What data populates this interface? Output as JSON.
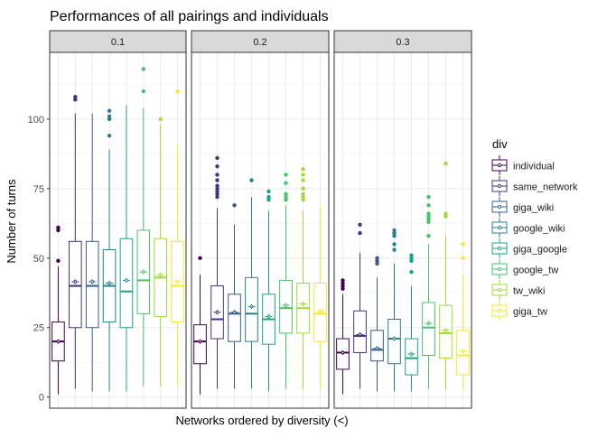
{
  "chart_data": {
    "type": "box",
    "title": "Performances of all pairings and individuals",
    "xlabel": "Networks ordered by diversity (<)",
    "ylabel": "Number of turns",
    "ylim": [
      -4,
      124
    ],
    "y_ticks": [
      0,
      25,
      50,
      75,
      100
    ],
    "grid": true,
    "legend_title": "div",
    "legend_position": "right",
    "series": [
      {
        "name": "individual",
        "color": "#440154"
      },
      {
        "name": "same_network",
        "color": "#46337E"
      },
      {
        "name": "giga_wiki",
        "color": "#365C8D"
      },
      {
        "name": "google_wiki",
        "color": "#277F8E"
      },
      {
        "name": "giga_google",
        "color": "#1FA187"
      },
      {
        "name": "google_tw",
        "color": "#4AC16D"
      },
      {
        "name": "tw_wiki",
        "color": "#9FDA3A"
      },
      {
        "name": "giga_tw",
        "color": "#FDE725"
      }
    ],
    "facets": [
      {
        "label": "0.1",
        "boxes": [
          {
            "series": "individual",
            "min": 1,
            "q1": 13,
            "median": 20,
            "q3": 27,
            "max": 47,
            "mean": 20,
            "outliers": [
              49,
              60,
              61
            ]
          },
          {
            "series": "same_network",
            "min": 3,
            "q1": 25,
            "median": 40,
            "q3": 56,
            "max": 102,
            "mean": 41.5,
            "outliers": [
              107,
              108
            ]
          },
          {
            "series": "giga_wiki",
            "min": 2,
            "q1": 25,
            "median": 40,
            "q3": 56,
            "max": 102,
            "mean": 41.5,
            "outliers": []
          },
          {
            "series": "google_wiki",
            "min": 2,
            "q1": 27,
            "median": 40,
            "q3": 53,
            "max": 89,
            "mean": 41,
            "outliers": [
              94,
              100,
              101,
              103
            ]
          },
          {
            "series": "giga_google",
            "min": 2,
            "q1": 25,
            "median": 38,
            "q3": 57,
            "max": 105,
            "mean": 42,
            "outliers": []
          },
          {
            "series": "google_tw",
            "min": 4,
            "q1": 30,
            "median": 42,
            "q3": 60,
            "max": 104,
            "mean": 45,
            "outliers": [
              110,
              118
            ]
          },
          {
            "series": "tw_wiki",
            "min": 4,
            "q1": 29,
            "median": 43,
            "q3": 57,
            "max": 98,
            "mean": 44,
            "outliers": [
              100
            ]
          },
          {
            "series": "giga_tw",
            "min": 4,
            "q1": 27,
            "median": 40,
            "q3": 56,
            "max": 91,
            "mean": 41.5,
            "outliers": [
              110
            ]
          }
        ]
      },
      {
        "label": "0.2",
        "boxes": [
          {
            "series": "individual",
            "min": 1,
            "q1": 12,
            "median": 20,
            "q3": 26,
            "max": 44,
            "mean": 20,
            "outliers": [
              50
            ]
          },
          {
            "series": "same_network",
            "min": 3,
            "q1": 21,
            "median": 28,
            "q3": 40,
            "max": 68,
            "mean": 30.5,
            "outliers": [
              72,
              73,
              74,
              75,
              76,
              78,
              80,
              83,
              86
            ]
          },
          {
            "series": "giga_wiki",
            "min": 3,
            "q1": 20,
            "median": 30,
            "q3": 37,
            "max": 62,
            "mean": 30.5,
            "outliers": [
              69
            ]
          },
          {
            "series": "google_wiki",
            "min": 3,
            "q1": 20,
            "median": 30,
            "q3": 43,
            "max": 72,
            "mean": 32.5,
            "outliers": [
              78
            ]
          },
          {
            "series": "giga_google",
            "min": 2,
            "q1": 19,
            "median": 28,
            "q3": 37,
            "max": 67,
            "mean": 29,
            "outliers": [
              71,
              72,
              74
            ]
          },
          {
            "series": "google_tw",
            "min": 3,
            "q1": 23,
            "median": 32,
            "q3": 42,
            "max": 69,
            "mean": 33,
            "outliers": [
              71,
              72,
              73,
              77,
              80
            ]
          },
          {
            "series": "tw_wiki",
            "min": 3,
            "q1": 23,
            "median": 32,
            "q3": 41,
            "max": 67,
            "mean": 33.5,
            "outliers": [
              71,
              72,
              73,
              75,
              78,
              80,
              82
            ]
          },
          {
            "series": "giga_tw",
            "min": 3,
            "q1": 20,
            "median": 30,
            "q3": 41,
            "max": 69,
            "mean": 31,
            "outliers": []
          }
        ]
      },
      {
        "label": "0.3",
        "boxes": [
          {
            "series": "individual",
            "min": 1,
            "q1": 10,
            "median": 16,
            "q3": 21,
            "max": 37,
            "mean": 16,
            "outliers": [
              39,
              40,
              41,
              42
            ]
          },
          {
            "series": "same_network",
            "min": 3,
            "q1": 16,
            "median": 22,
            "q3": 31,
            "max": 52,
            "mean": 22.5,
            "outliers": [
              59,
              62
            ]
          },
          {
            "series": "giga_wiki",
            "min": 2,
            "q1": 13,
            "median": 17,
            "q3": 24,
            "max": 43,
            "mean": 17.5,
            "outliers": [
              48,
              49,
              50
            ]
          },
          {
            "series": "google_wiki",
            "min": 2,
            "q1": 12,
            "median": 21,
            "q3": 28,
            "max": 48,
            "mean": 21,
            "outliers": [
              53,
              55,
              58,
              59,
              60
            ]
          },
          {
            "series": "giga_google",
            "min": 2,
            "q1": 8,
            "median": 14,
            "q3": 21,
            "max": 40,
            "mean": 15.5,
            "outliers": [
              45,
              49,
              50,
              51
            ]
          },
          {
            "series": "google_tw",
            "min": 3,
            "q1": 15,
            "median": 25,
            "q3": 34,
            "max": 55,
            "mean": 26.5,
            "outliers": [
              58,
              63,
              64,
              65,
              66,
              69,
              72
            ]
          },
          {
            "series": "tw_wiki",
            "min": 3,
            "q1": 14,
            "median": 23,
            "q3": 33,
            "max": 58,
            "mean": 24,
            "outliers": [
              65,
              66,
              84
            ]
          },
          {
            "series": "giga_tw",
            "min": 3,
            "q1": 8,
            "median": 15,
            "q3": 24,
            "max": 44,
            "mean": 16.5,
            "outliers": [
              50,
              55
            ]
          }
        ]
      }
    ]
  }
}
